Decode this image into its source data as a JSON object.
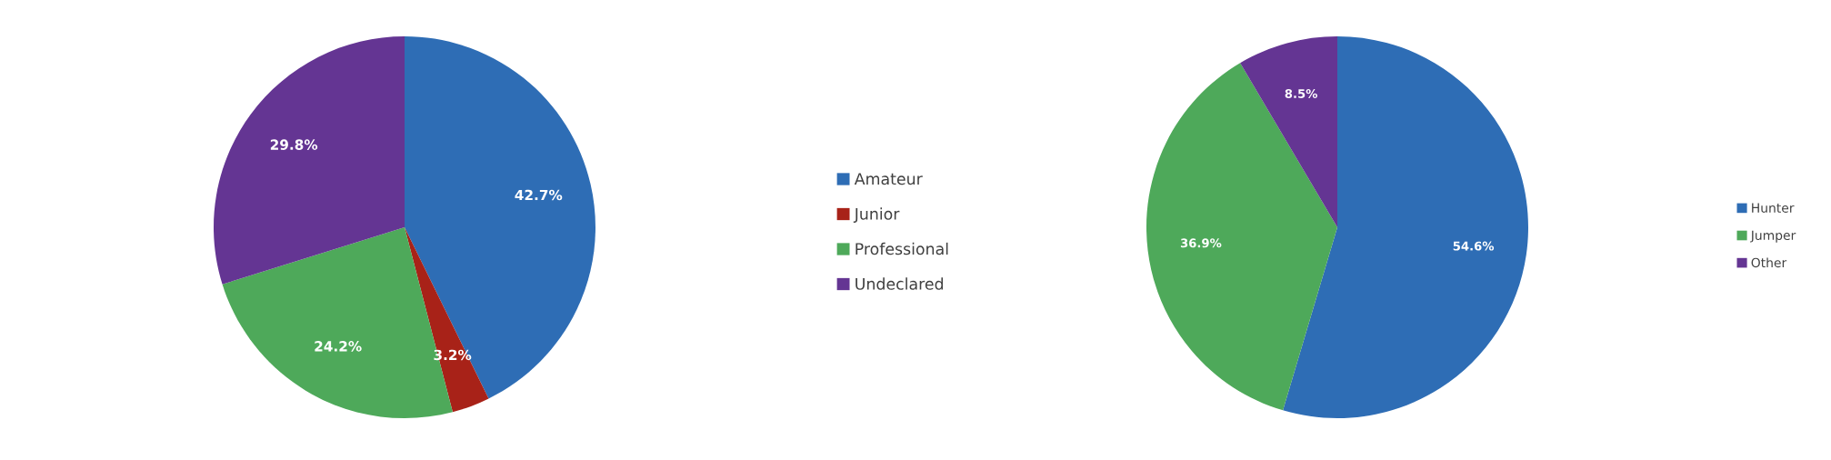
{
  "chart_data": [
    {
      "type": "pie",
      "categories": [
        "Amateur",
        "Junior",
        "Professional",
        "Undeclared"
      ],
      "values": [
        42.7,
        3.2,
        24.2,
        29.8
      ],
      "colors": [
        "#2e6db5",
        "#a82218",
        "#4ea95a",
        "#643593"
      ],
      "value_labels": [
        "42.7%",
        "3.2%",
        "24.2%",
        "29.8%"
      ],
      "legend": "right"
    },
    {
      "type": "pie",
      "categories": [
        "Hunter",
        "Jumper",
        "Other"
      ],
      "values": [
        54.6,
        36.9,
        8.5
      ],
      "colors": [
        "#2e6db5",
        "#4ea95a",
        "#643593"
      ],
      "value_labels": [
        "54.6%",
        "36.9%",
        "8.5%"
      ],
      "legend": "right"
    }
  ]
}
